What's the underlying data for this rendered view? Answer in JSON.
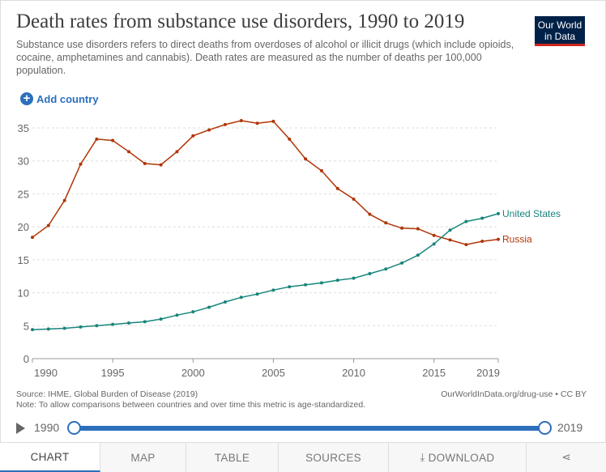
{
  "header": {
    "title": "Death rates from substance use disorders, 1990 to 2019",
    "subtitle": "Substance use disorders refers to direct deaths from overdoses of alcohol or illicit drugs (which include opioids, cocaine, amphetamines and cannabis). Death rates are measured as the number of deaths per 100,000 population.",
    "logo_line1": "Our World",
    "logo_line2": "in Data"
  },
  "controls": {
    "add_country": "Add country"
  },
  "chart_data": {
    "type": "line",
    "title": "Death rates from substance use disorders, 1990 to 2019",
    "xlabel": "",
    "ylabel": "",
    "xlim": [
      1990,
      2019
    ],
    "ylim": [
      0,
      35
    ],
    "x_ticks": [
      1990,
      1995,
      2000,
      2005,
      2010,
      2015,
      2019
    ],
    "y_ticks": [
      0,
      5,
      10,
      15,
      20,
      25,
      30,
      35
    ],
    "grid": "horizontal dashed",
    "legend": "inline labels at line ends (right)",
    "x": [
      1990,
      1991,
      1992,
      1993,
      1994,
      1995,
      1996,
      1997,
      1998,
      1999,
      2000,
      2001,
      2002,
      2003,
      2004,
      2005,
      2006,
      2007,
      2008,
      2009,
      2010,
      2011,
      2012,
      2013,
      2014,
      2015,
      2016,
      2017,
      2018,
      2019
    ],
    "series": [
      {
        "name": "Russia",
        "color": "#b13507",
        "values": [
          18.4,
          20.2,
          24.0,
          29.5,
          33.3,
          33.1,
          31.4,
          29.6,
          29.4,
          31.4,
          33.8,
          34.7,
          35.5,
          36.1,
          35.7,
          36.0,
          33.3,
          30.3,
          28.5,
          25.8,
          24.2,
          21.9,
          20.6,
          19.8,
          19.7,
          18.7,
          18.0,
          17.3,
          17.8,
          18.1
        ]
      },
      {
        "name": "United States",
        "color": "#18857c",
        "values": [
          4.4,
          4.5,
          4.6,
          4.8,
          5.0,
          5.2,
          5.4,
          5.6,
          6.0,
          6.6,
          7.1,
          7.8,
          8.6,
          9.3,
          9.8,
          10.4,
          10.9,
          11.2,
          11.5,
          11.9,
          12.2,
          12.9,
          13.6,
          14.5,
          15.7,
          17.4,
          19.5,
          20.8,
          21.3,
          22.0
        ]
      }
    ]
  },
  "footer": {
    "source": "Source: IHME, Global Burden of Disease (2019)",
    "note": "Note: To allow comparisons between countries and over time this metric is age-standardized.",
    "credit": "OurWorldInData.org/drug-use • CC BY"
  },
  "timeline": {
    "start": "1990",
    "end": "2019"
  },
  "tabs": [
    "CHART",
    "MAP",
    "TABLE",
    "SOURCES",
    "DOWNLOAD"
  ]
}
